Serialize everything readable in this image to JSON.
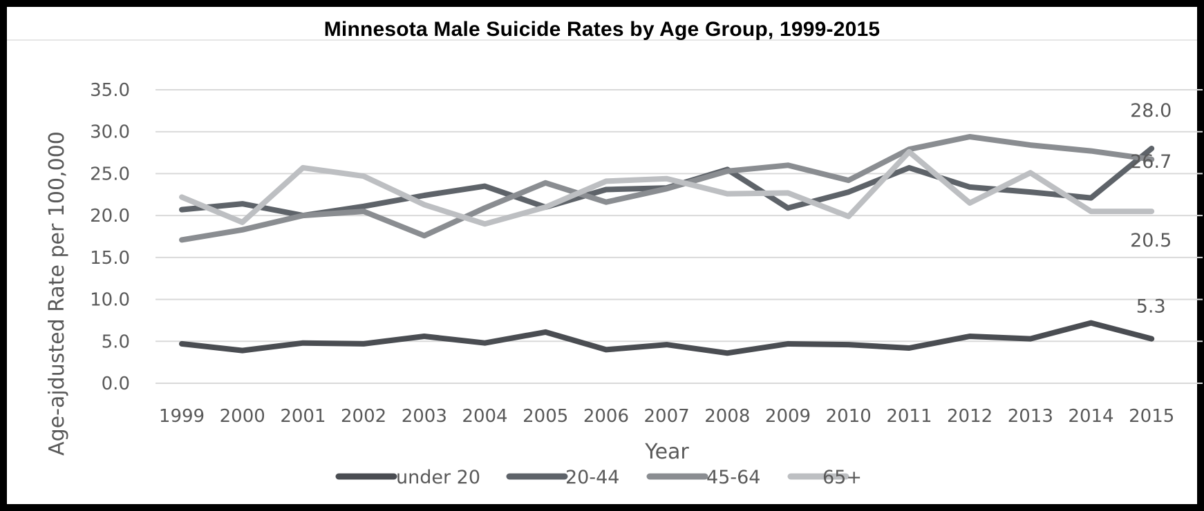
{
  "chart_data": {
    "type": "line",
    "title": "Minnesota Male Suicide Rates by Age Group, 1999-2015",
    "xlabel": "Year",
    "ylabel": "Age-ajdusted Rate per 100,000",
    "ylim": [
      0,
      35
    ],
    "yticks": [
      "0.0",
      "5.0",
      "10.0",
      "15.0",
      "20.0",
      "25.0",
      "30.0",
      "35.0"
    ],
    "grid": true,
    "legend_position": "bottom",
    "categories": [
      "1999",
      "2000",
      "2001",
      "2002",
      "2003",
      "2004",
      "2005",
      "2006",
      "2007",
      "2008",
      "2009",
      "2010",
      "2011",
      "2012",
      "2013",
      "2014",
      "2015"
    ],
    "series": [
      {
        "name": "under 20",
        "color": "#4a4d52",
        "values": [
          4.7,
          3.9,
          4.8,
          4.7,
          5.6,
          4.8,
          6.1,
          4.0,
          4.6,
          3.6,
          4.7,
          4.6,
          4.2,
          5.6,
          5.3,
          7.2,
          5.3
        ],
        "end_label": "5.3"
      },
      {
        "name": "20-44",
        "color": "#5e6369",
        "values": [
          20.7,
          21.4,
          20.0,
          21.1,
          22.4,
          23.5,
          21.0,
          23.1,
          23.3,
          25.5,
          20.9,
          22.8,
          25.7,
          23.4,
          22.8,
          22.1,
          28.0
        ],
        "end_label": "28.0"
      },
      {
        "name": "45-64",
        "color": "#8a8d91",
        "values": [
          17.1,
          18.3,
          20.0,
          20.5,
          17.6,
          20.9,
          23.9,
          21.6,
          23.2,
          25.3,
          26.0,
          24.2,
          27.9,
          29.4,
          28.4,
          27.7,
          26.7
        ],
        "end_label": "26.7"
      },
      {
        "name": "65+",
        "color": "#bdbfc2",
        "values": [
          22.2,
          19.2,
          25.7,
          24.7,
          21.3,
          19.0,
          21.0,
          24.1,
          24.4,
          22.6,
          22.7,
          19.9,
          27.6,
          21.5,
          25.1,
          20.5,
          20.5
        ],
        "end_label": "20.5"
      }
    ]
  }
}
